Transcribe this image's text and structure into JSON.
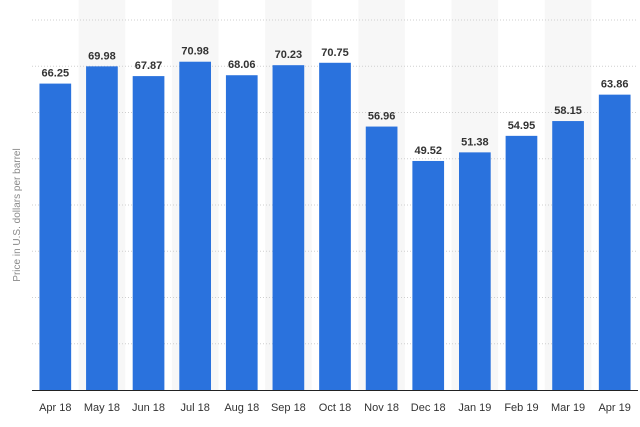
{
  "chart_data": {
    "type": "bar",
    "ylabel": "Price in U.S. dollars per barrel",
    "categories": [
      "Apr 18",
      "May 18",
      "Jun 18",
      "Jul 18",
      "Aug 18",
      "Sep 18",
      "Oct 18",
      "Nov 18",
      "Dec 18",
      "Jan 19",
      "Feb 19",
      "Mar 19",
      "Apr 19"
    ],
    "values": [
      66.25,
      69.98,
      67.87,
      70.98,
      68.06,
      70.23,
      70.75,
      56.96,
      49.52,
      51.38,
      54.95,
      58.15,
      63.86
    ],
    "value_labels": [
      "66.25",
      "69.98",
      "67.87",
      "70.98",
      "68.06",
      "70.23",
      "70.75",
      "56.96",
      "49.52",
      "51.38",
      "54.95",
      "58.15",
      "63.86"
    ],
    "ylim": [
      0,
      80
    ],
    "grid": true,
    "bar_color": "#2a72dd",
    "band_color": "#f7f7f7"
  }
}
